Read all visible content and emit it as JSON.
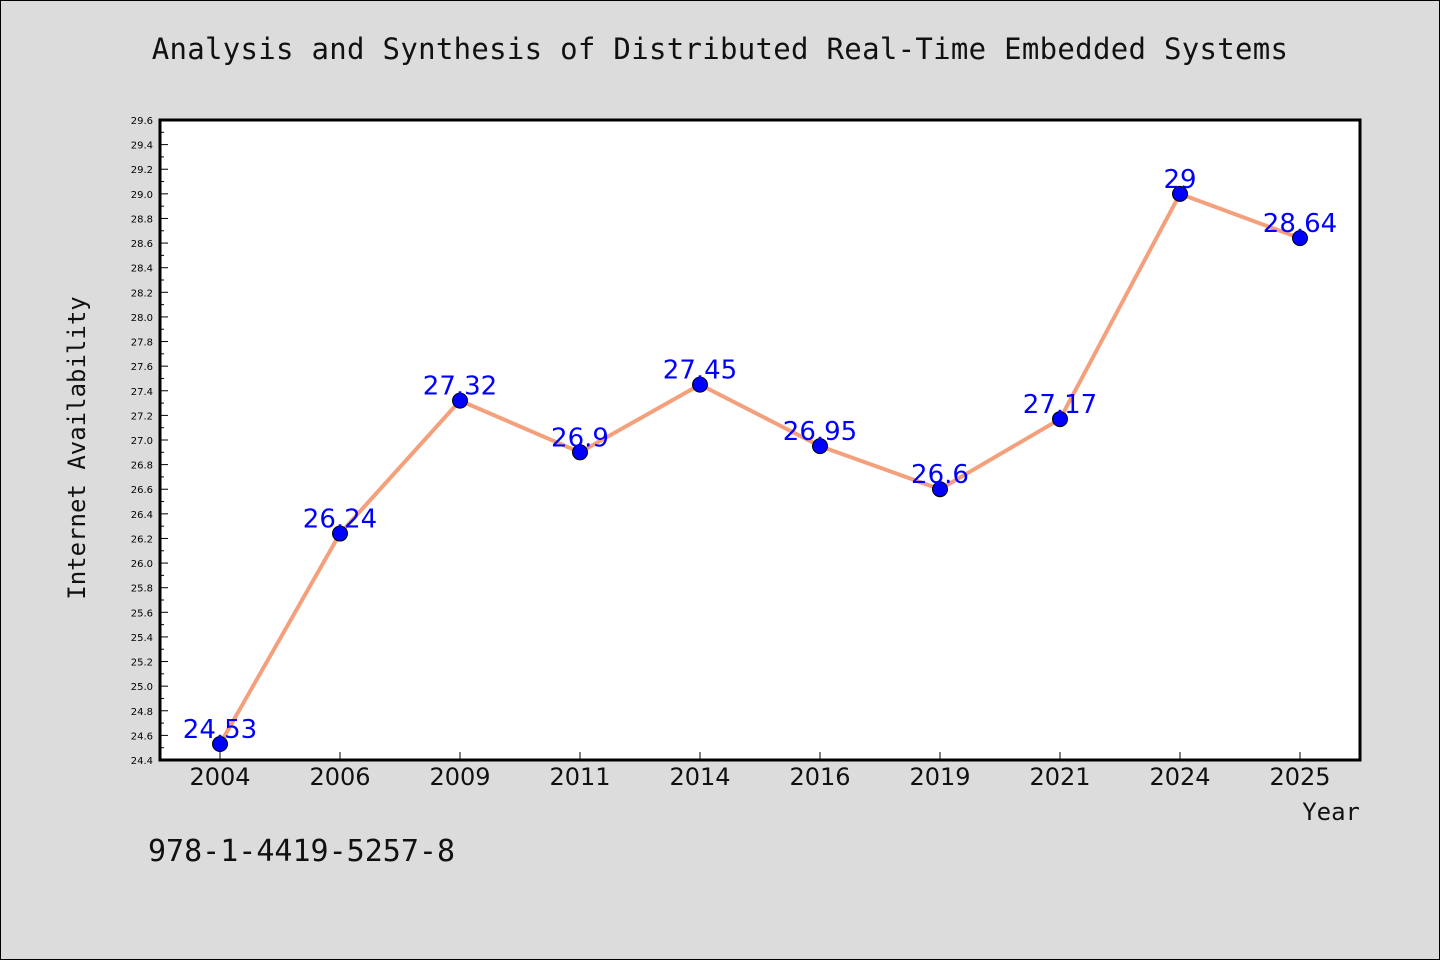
{
  "title": "Analysis and Synthesis of Distributed Real-Time Embedded Systems",
  "footer_text": "978-1-4419-5257-8",
  "colors": {
    "background": "#dcdcdc",
    "plot_background": "#ffffff",
    "line": "#f4a07c",
    "marker": "#0000ff",
    "data_label": "#0000ff"
  },
  "chart_data": {
    "type": "line",
    "title": "Analysis and Synthesis of Distributed Real-Time Embedded Systems",
    "xlabel": "Year",
    "ylabel": "Internet Availability",
    "categories": [
      "2004",
      "2006",
      "2009",
      "2011",
      "2014",
      "2016",
      "2019",
      "2021",
      "2024",
      "2025"
    ],
    "series": [
      {
        "values": [
          24.53,
          26.24,
          27.32,
          26.9,
          27.45,
          26.95,
          26.6,
          27.17,
          29,
          28.64
        ],
        "labels": [
          "24.53",
          "26.24",
          "27.32",
          "26.9",
          "27.45",
          "26.95",
          "26.6",
          "27.17",
          "29",
          "28.64"
        ]
      }
    ],
    "ylim": [
      24.4,
      29.6
    ],
    "yticks": [
      "24.4",
      "24.6",
      "24.8",
      "25.0",
      "25.2",
      "25.4",
      "25.6",
      "25.8",
      "26.0",
      "26.2",
      "26.4",
      "26.6",
      "26.8",
      "27.0",
      "27.2",
      "27.4",
      "27.6",
      "27.8",
      "28.0",
      "28.2",
      "28.4",
      "28.6",
      "28.8",
      "29.0",
      "29.2",
      "29.4",
      "29.6"
    ],
    "grid": false,
    "legend": "none"
  }
}
